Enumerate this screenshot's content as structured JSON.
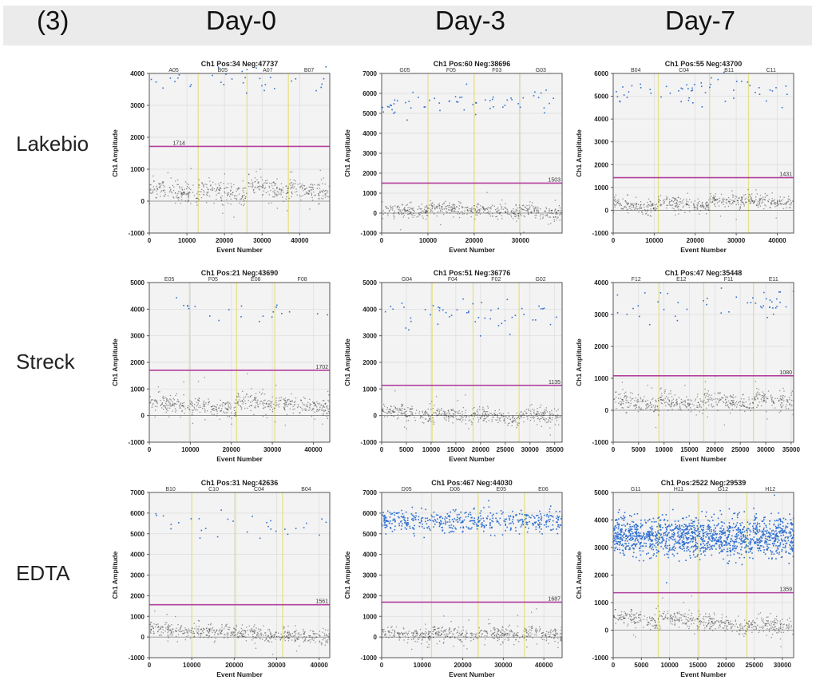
{
  "figure": {
    "panel_label": "(3)",
    "columns": [
      "Day-0",
      "Day-3",
      "Day-7"
    ],
    "rows": [
      "Lakebio",
      "Streck",
      "EDTA"
    ]
  },
  "colors": {
    "header_bg": "#ebebeb",
    "plot_bg": "#f3f3f3",
    "positive": "#2f6fd0",
    "negative": "#3a3a3a",
    "threshold": "#b2409e",
    "well_divider": "#e6e08a"
  },
  "chart_data": [
    {
      "type": "scatter",
      "row": "Lakebio",
      "column": "Day-0",
      "title": "Ch1 Pos:34 Neg:47737",
      "xlabel": "Event Number",
      "ylabel": "Ch1 Amplitude",
      "xlim": [
        0,
        48000
      ],
      "ylim": [
        -1000,
        4000
      ],
      "xticks": [
        0,
        10000,
        20000,
        30000,
        40000
      ],
      "yticks": [
        -1000,
        0,
        1000,
        2000,
        3000,
        4000
      ],
      "threshold": 1714,
      "threshold_label": "1714",
      "threshold_label_pos": "left",
      "positive_count": 34,
      "negative_count": 47737,
      "wells": [
        "A05",
        "B05",
        "A07",
        "B07"
      ],
      "well_boundaries": [
        13000,
        26000,
        37000
      ],
      "neg_cluster_means": [
        300,
        250,
        380,
        300
      ],
      "neg_spread": 280,
      "pos_mean": 3700,
      "pos_spread": 250
    },
    {
      "type": "scatter",
      "row": "Lakebio",
      "column": "Day-3",
      "title": "Ch1 Pos:60 Neg:38696",
      "xlabel": "Event Number",
      "ylabel": "Ch1 Amplitude",
      "xlim": [
        0,
        39000
      ],
      "ylim": [
        -1000,
        7000
      ],
      "xticks": [
        0,
        10000,
        20000,
        30000
      ],
      "yticks": [
        -1000,
        0,
        1000,
        2000,
        3000,
        4000,
        5000,
        6000,
        7000
      ],
      "threshold": 1503,
      "threshold_label": "1503",
      "threshold_label_pos": "right",
      "positive_count": 60,
      "negative_count": 38696,
      "wells": [
        "G05",
        "F05",
        "F03",
        "G03"
      ],
      "well_boundaries": [
        10000,
        20000,
        29800
      ],
      "neg_cluster_means": [
        100,
        200,
        80,
        50
      ],
      "neg_spread": 300,
      "pos_mean": 5500,
      "pos_spread": 350
    },
    {
      "type": "scatter",
      "row": "Lakebio",
      "column": "Day-7",
      "title": "Ch1 Pos:55 Neg:43700",
      "xlabel": "Event Number",
      "ylabel": "Ch1 Amplitude",
      "xlim": [
        0,
        44000
      ],
      "ylim": [
        -1000,
        6000
      ],
      "xticks": [
        0,
        10000,
        20000,
        30000,
        40000
      ],
      "yticks": [
        -1000,
        0,
        1000,
        2000,
        3000,
        4000,
        5000,
        6000
      ],
      "threshold": 1431,
      "threshold_label": "1431",
      "threshold_label_pos": "right",
      "positive_count": 55,
      "negative_count": 43700,
      "wells": [
        "B04",
        "C04",
        "B11",
        "C11"
      ],
      "well_boundaries": [
        11000,
        23500,
        33000
      ],
      "neg_cluster_means": [
        200,
        250,
        400,
        350
      ],
      "neg_spread": 260,
      "pos_mean": 5300,
      "pos_spread": 300
    },
    {
      "type": "scatter",
      "row": "Streck",
      "column": "Day-0",
      "title": "Ch1 Pos:21 Neg:43690",
      "xlabel": "Event Number",
      "ylabel": "Ch1 Amplitude",
      "xlim": [
        0,
        44000
      ],
      "ylim": [
        -1000,
        5000
      ],
      "xticks": [
        0,
        10000,
        20000,
        30000,
        40000
      ],
      "yticks": [
        -1000,
        0,
        1000,
        2000,
        3000,
        4000,
        5000
      ],
      "threshold": 1702,
      "threshold_label": "1702",
      "threshold_label_pos": "right",
      "positive_count": 21,
      "negative_count": 43690,
      "wells": [
        "E05",
        "F05",
        "E08",
        "F08"
      ],
      "well_boundaries": [
        9800,
        21300,
        30600
      ],
      "neg_cluster_means": [
        400,
        300,
        450,
        350
      ],
      "neg_spread": 280,
      "pos_mean": 3950,
      "pos_spread": 200
    },
    {
      "type": "scatter",
      "row": "Streck",
      "column": "Day-3",
      "title": "Ch1 Pos:51 Neg:36776",
      "xlabel": "Event Number",
      "ylabel": "Ch1 Amplitude",
      "xlim": [
        0,
        36500
      ],
      "ylim": [
        -1000,
        5000
      ],
      "xticks": [
        0,
        5000,
        10000,
        15000,
        20000,
        25000,
        30000,
        35000
      ],
      "yticks": [
        -1000,
        0,
        1000,
        2000,
        3000,
        4000,
        5000
      ],
      "threshold": 1135,
      "threshold_label": "1135",
      "threshold_label_pos": "right",
      "positive_count": 51,
      "negative_count": 36776,
      "wells": [
        "G04",
        "F04",
        "F02",
        "G02"
      ],
      "well_boundaries": [
        10200,
        18500,
        27800
      ],
      "neg_cluster_means": [
        50,
        0,
        -50,
        -30
      ],
      "neg_spread": 260,
      "pos_mean": 3700,
      "pos_spread": 350
    },
    {
      "type": "scatter",
      "row": "Streck",
      "column": "Day-7",
      "title": "Ch1 Pos:47 Neg:35448",
      "xlabel": "Event Number",
      "ylabel": "Ch1 Amplitude",
      "xlim": [
        0,
        35500
      ],
      "ylim": [
        -1000,
        4000
      ],
      "xticks": [
        0,
        5000,
        10000,
        15000,
        20000,
        25000,
        30000,
        35000
      ],
      "yticks": [
        -1000,
        0,
        1000,
        2000,
        3000,
        4000
      ],
      "threshold": 1080,
      "threshold_label": "1080",
      "threshold_label_pos": "right",
      "positive_count": 47,
      "negative_count": 35448,
      "wells": [
        "F12",
        "E12",
        "F11",
        "E11"
      ],
      "well_boundaries": [
        9000,
        17800,
        27600
      ],
      "neg_cluster_means": [
        220,
        200,
        250,
        300
      ],
      "neg_spread": 230,
      "pos_mean": 3250,
      "pos_spread": 250
    },
    {
      "type": "scatter",
      "row": "EDTA",
      "column": "Day-0",
      "title": "Ch1 Pos:31 Neg:42636",
      "xlabel": "Event Number",
      "ylabel": "Ch1 Amplitude",
      "xlim": [
        0,
        42500
      ],
      "ylim": [
        -1000,
        7000
      ],
      "xticks": [
        0,
        10000,
        20000,
        30000,
        40000
      ],
      "yticks": [
        -1000,
        0,
        1000,
        2000,
        3000,
        4000,
        5000,
        6000,
        7000
      ],
      "threshold": 1561,
      "threshold_label": "1561",
      "threshold_label_pos": "right",
      "positive_count": 31,
      "negative_count": 42636,
      "wells": [
        "B10",
        "C10",
        "C04",
        "B04"
      ],
      "well_boundaries": [
        10000,
        20300,
        31400
      ],
      "neg_cluster_means": [
        300,
        250,
        100,
        50
      ],
      "neg_spread": 300,
      "pos_mean": 5500,
      "pos_spread": 350
    },
    {
      "type": "scatter",
      "row": "EDTA",
      "column": "Day-3",
      "title": "Ch1 Pos:467 Neg:44030",
      "xlabel": "Event Number",
      "ylabel": "Ch1 Amplitude",
      "xlim": [
        0,
        44500
      ],
      "ylim": [
        -1000,
        7000
      ],
      "xticks": [
        0,
        10000,
        20000,
        30000,
        40000
      ],
      "yticks": [
        -1000,
        0,
        1000,
        2000,
        3000,
        4000,
        5000,
        6000,
        7000
      ],
      "threshold": 1687,
      "threshold_label": "1687",
      "threshold_label_pos": "right",
      "positive_count": 467,
      "negative_count": 44030,
      "wells": [
        "D05",
        "D06",
        "E05",
        "E06"
      ],
      "well_boundaries": [
        12300,
        23800,
        35200
      ],
      "neg_cluster_means": [
        100,
        150,
        120,
        150
      ],
      "neg_spread": 300,
      "pos_mean": 5600,
      "pos_spread": 280
    },
    {
      "type": "scatter",
      "row": "EDTA",
      "column": "Day-7",
      "title": "Ch1 Pos:2522 Neg:29539",
      "xlabel": "Event Number",
      "ylabel": "Ch1 Amplitude",
      "xlim": [
        0,
        32000
      ],
      "ylim": [
        -1000,
        5000
      ],
      "xticks": [
        0,
        5000,
        10000,
        15000,
        20000,
        25000,
        30000
      ],
      "yticks": [
        -1000,
        0,
        1000,
        2000,
        3000,
        4000,
        5000
      ],
      "threshold": 1359,
      "threshold_label": "1359",
      "threshold_label_pos": "right",
      "positive_count": 2522,
      "negative_count": 29539,
      "wells": [
        "G11",
        "H11",
        "G12",
        "H12"
      ],
      "well_boundaries": [
        8000,
        15200,
        23700
      ],
      "neg_cluster_means": [
        350,
        400,
        200,
        150
      ],
      "neg_spread": 280,
      "pos_mean": 3400,
      "pos_spread": 350
    }
  ]
}
